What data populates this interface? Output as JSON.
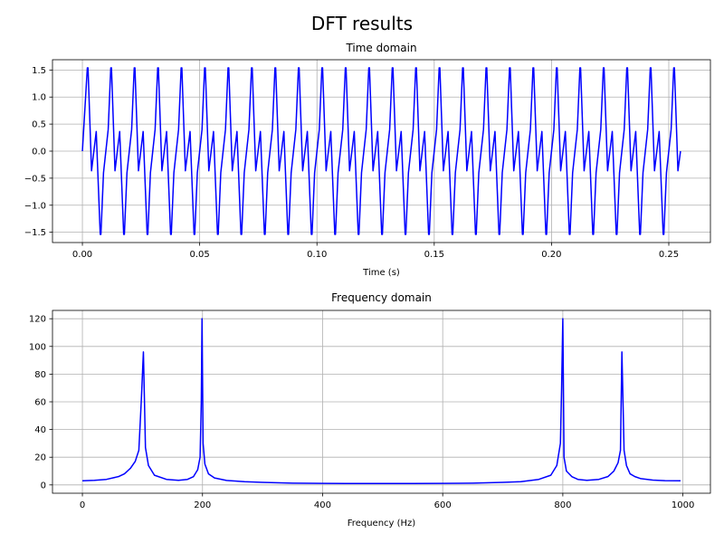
{
  "suptitle": "DFT results",
  "chart_data": [
    {
      "type": "line",
      "title": "Time domain",
      "xlabel": "Time (s)",
      "ylabel": "",
      "xlim": [
        -0.01275,
        0.26775
      ],
      "ylim": [
        -1.69,
        1.69
      ],
      "xticks": [
        0.0,
        0.05,
        0.1,
        0.15,
        0.2,
        0.25
      ],
      "xtick_labels": [
        "0.00",
        "0.05",
        "0.10",
        "0.15",
        "0.20",
        "0.25"
      ],
      "yticks": [
        1.5,
        1.0,
        0.5,
        0.0,
        -0.5,
        -1.0,
        -1.5
      ],
      "ytick_labels": [
        "1.5",
        "1.0",
        "0.5",
        "0.0",
        "−0.5",
        "−1.0",
        "−1.5"
      ],
      "grid": true,
      "color": "#0000ff",
      "series": [
        {
          "x": [
            0.0,
            0.0021,
            0.0024,
            0.0039,
            0.0059,
            0.0076,
            0.0079,
            0.009,
            0.01,
            0.011,
            0.0121,
            0.0124,
            0.0139,
            0.0159,
            0.0176,
            0.0179,
            0.019,
            0.02,
            0.021,
            0.0221,
            0.0224,
            0.0239,
            0.0259,
            0.0276,
            0.0279,
            0.029,
            0.03,
            0.031,
            0.0321,
            0.0324,
            0.0339,
            0.0359,
            0.0376,
            0.0379,
            0.039,
            0.04,
            0.041,
            0.0421,
            0.0424,
            0.0439,
            0.0459,
            0.0476,
            0.0479,
            0.049,
            0.05,
            0.051,
            0.0521,
            0.0524,
            0.0539,
            0.0559,
            0.0576,
            0.0579,
            0.059,
            0.06,
            0.061,
            0.0621,
            0.0624,
            0.0639,
            0.0659,
            0.0676,
            0.0679,
            0.069,
            0.07,
            0.071,
            0.0721,
            0.0724,
            0.0739,
            0.0759,
            0.0776,
            0.0779,
            0.079,
            0.08,
            0.081,
            0.0821,
            0.0824,
            0.0839,
            0.0859,
            0.0876,
            0.0879,
            0.089,
            0.09,
            0.091,
            0.0921,
            0.0924,
            0.0939,
            0.0959,
            0.0976,
            0.0979,
            0.099,
            0.1,
            0.101,
            0.1021,
            0.1024,
            0.1039,
            0.1059,
            0.1076,
            0.1079,
            0.109,
            0.11,
            0.111,
            0.1121,
            0.1124,
            0.1139,
            0.1159,
            0.1176,
            0.1179,
            0.119,
            0.12,
            0.121,
            0.1221,
            0.1224,
            0.1239,
            0.1259,
            0.1276,
            0.1279,
            0.129,
            0.13,
            0.131,
            0.1321,
            0.1324,
            0.1339,
            0.1359,
            0.1376,
            0.1379,
            0.139,
            0.14,
            0.141,
            0.1421,
            0.1424,
            0.1439,
            0.1459,
            0.1476,
            0.1479,
            0.149,
            0.15,
            0.151,
            0.1521,
            0.1524,
            0.1539,
            0.1559,
            0.1576,
            0.1579,
            0.159,
            0.16,
            0.161,
            0.1621,
            0.1624,
            0.1639,
            0.1659,
            0.1676,
            0.1679,
            0.169,
            0.17,
            0.171,
            0.1721,
            0.1724,
            0.1739,
            0.1759,
            0.1776,
            0.1779,
            0.179,
            0.18,
            0.181,
            0.1821,
            0.1824,
            0.1839,
            0.1859,
            0.1876,
            0.1879,
            0.189,
            0.19,
            0.191,
            0.1921,
            0.1924,
            0.1939,
            0.1959,
            0.1976,
            0.1979,
            0.199,
            0.2,
            0.201,
            0.2021,
            0.2024,
            0.2039,
            0.2059,
            0.2076,
            0.2079,
            0.209,
            0.21,
            0.211,
            0.2121,
            0.2124,
            0.2139,
            0.2159,
            0.2176,
            0.2179,
            0.219,
            0.22,
            0.221,
            0.2221,
            0.2224,
            0.2239,
            0.2259,
            0.2276,
            0.2279,
            0.229,
            0.23,
            0.231,
            0.2321,
            0.2324,
            0.2339,
            0.2359,
            0.2376,
            0.2379,
            0.239,
            0.24,
            0.241,
            0.2421,
            0.2424,
            0.2439,
            0.2459,
            0.2476,
            0.2479,
            0.249,
            0.25,
            0.251,
            0.2521,
            0.2524,
            0.2539,
            0.255
          ],
          "y": [
            0.0,
            1.539,
            1.539,
            -0.363,
            0.363,
            -1.539,
            -1.539,
            -0.4,
            0.0,
            0.4,
            1.539,
            1.539,
            -0.363,
            0.363,
            -1.539,
            -1.539,
            -0.4,
            0.0,
            0.4,
            1.539,
            1.539,
            -0.363,
            0.363,
            -1.539,
            -1.539,
            -0.4,
            0.0,
            0.4,
            1.539,
            1.539,
            -0.363,
            0.363,
            -1.539,
            -1.539,
            -0.4,
            0.0,
            0.4,
            1.539,
            1.539,
            -0.363,
            0.363,
            -1.539,
            -1.539,
            -0.4,
            0.0,
            0.4,
            1.539,
            1.539,
            -0.363,
            0.363,
            -1.539,
            -1.539,
            -0.4,
            0.0,
            0.4,
            1.539,
            1.539,
            -0.363,
            0.363,
            -1.539,
            -1.539,
            -0.4,
            0.0,
            0.4,
            1.539,
            1.539,
            -0.363,
            0.363,
            -1.539,
            -1.539,
            -0.4,
            0.0,
            0.4,
            1.539,
            1.539,
            -0.363,
            0.363,
            -1.539,
            -1.539,
            -0.4,
            0.0,
            0.4,
            1.539,
            1.539,
            -0.363,
            0.363,
            -1.539,
            -1.539,
            -0.4,
            0.0,
            0.4,
            1.539,
            1.539,
            -0.363,
            0.363,
            -1.539,
            -1.539,
            -0.4,
            0.0,
            0.4,
            1.539,
            1.539,
            -0.363,
            0.363,
            -1.539,
            -1.539,
            -0.4,
            0.0,
            0.4,
            1.539,
            1.539,
            -0.363,
            0.363,
            -1.539,
            -1.539,
            -0.4,
            0.0,
            0.4,
            1.539,
            1.539,
            -0.363,
            0.363,
            -1.539,
            -1.539,
            -0.4,
            0.0,
            0.4,
            1.539,
            1.539,
            -0.363,
            0.363,
            -1.539,
            -1.539,
            -0.4,
            0.0,
            0.4,
            1.539,
            1.539,
            -0.363,
            0.363,
            -1.539,
            -1.539,
            -0.4,
            0.0,
            0.4,
            1.539,
            1.539,
            -0.363,
            0.363,
            -1.539,
            -1.539,
            -0.4,
            0.0,
            0.4,
            1.539,
            1.539,
            -0.363,
            0.363,
            -1.539,
            -1.539,
            -0.4,
            0.0,
            0.4,
            1.539,
            1.539,
            -0.363,
            0.363,
            -1.539,
            -1.539,
            -0.4,
            0.0,
            0.4,
            1.539,
            1.539,
            -0.363,
            0.363,
            -1.539,
            -1.539,
            -0.4,
            0.0,
            0.4,
            1.539,
            1.539,
            -0.363,
            0.363,
            -1.539,
            -1.539,
            -0.4,
            0.0,
            0.4,
            1.539,
            1.539,
            -0.363,
            0.363,
            -1.539,
            -1.539,
            -0.4,
            0.0,
            0.4,
            1.539,
            1.539,
            -0.363,
            0.363,
            -1.539,
            -1.539,
            -0.4,
            0.0,
            0.4,
            1.539,
            1.539,
            -0.363,
            0.363,
            -1.539,
            -1.539,
            -0.4,
            0.0,
            0.4,
            1.539,
            1.539,
            -0.363,
            0.363,
            -1.539,
            -1.539,
            -0.4,
            0.0,
            0.4,
            1.539,
            1.539,
            -0.363,
            0.0
          ]
        }
      ]
    },
    {
      "type": "line",
      "title": "Frequency domain",
      "xlabel": "Frequency (Hz)",
      "ylabel": "",
      "xlim": [
        -49.8,
        1045.8
      ],
      "ylim": [
        -6.0,
        126.0
      ],
      "xticks": [
        0,
        200,
        400,
        600,
        800,
        1000
      ],
      "xtick_labels": [
        "0",
        "200",
        "400",
        "600",
        "800",
        "1000"
      ],
      "yticks": [
        0,
        20,
        40,
        60,
        80,
        100,
        120
      ],
      "ytick_labels": [
        "0",
        "20",
        "40",
        "60",
        "80",
        "100",
        "120"
      ],
      "grid": true,
      "color": "#0000ff",
      "series": [
        {
          "x": [
            0,
            20,
            40,
            60,
            70,
            80,
            88,
            94,
            98,
            101.6,
            105,
            110,
            120,
            140,
            160,
            175,
            185,
            192,
            196,
            198,
            199.2,
            201,
            204,
            210,
            220,
            240,
            270,
            300,
            350,
            400,
            450,
            500,
            550,
            600,
            650,
            700,
            730,
            760,
            780,
            790,
            796,
            798,
            800,
            802,
            806,
            815,
            825,
            840,
            860,
            875,
            885,
            892,
            896,
            898.4,
            902,
            906,
            912,
            920,
            930,
            950,
            970,
            996
          ],
          "y": [
            3,
            3.3,
            4,
            6,
            8,
            12,
            17,
            25,
            60,
            96,
            27,
            14,
            7,
            4,
            3.3,
            4,
            6,
            11,
            20,
            60,
            120,
            30,
            15,
            8,
            5,
            3.2,
            2.3,
            1.8,
            1.3,
            1.1,
            1.0,
            1.0,
            1.0,
            1.1,
            1.3,
            1.8,
            2.3,
            4,
            7,
            14,
            30,
            70,
            120,
            20,
            10,
            6,
            4,
            3.3,
            4,
            6,
            10,
            16,
            25,
            96,
            25,
            14,
            8,
            6,
            4.5,
            3.5,
            3.1,
            3
          ]
        }
      ]
    }
  ]
}
